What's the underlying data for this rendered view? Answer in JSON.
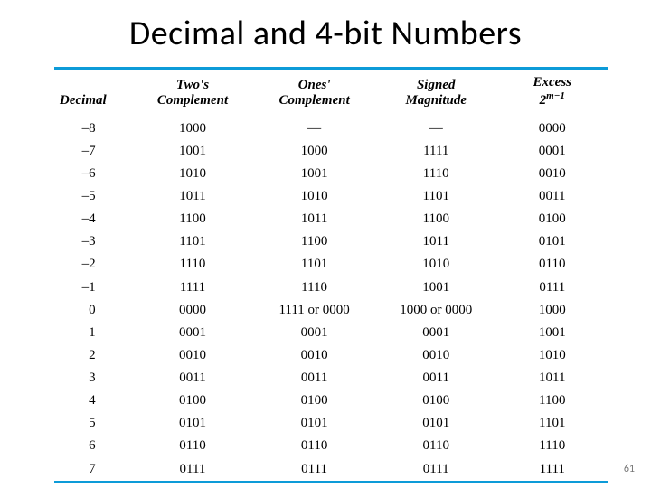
{
  "title": "Decimal and 4-bit Numbers",
  "page_number": "61",
  "table": {
    "type": "table",
    "rule_color": "#0d9bd8",
    "header_font_style": "bold italic",
    "body_font_family": "Times New Roman",
    "columns": {
      "decimal": "Decimal",
      "twos_l1": "Two's",
      "twos_l2": "Complement",
      "ones_l1": "Ones'",
      "ones_l2": "Complement",
      "signed_l1": "Signed",
      "signed_l2": "Magnitude",
      "excess_l1": "Excess",
      "excess_l2_pre": "2",
      "excess_l2_sup": "m−1"
    },
    "rows": [
      {
        "dec": "–8",
        "twos": "1000",
        "ones": "—",
        "signed": "—",
        "excess": "0000"
      },
      {
        "dec": "–7",
        "twos": "1001",
        "ones": "1000",
        "signed": "1111",
        "excess": "0001"
      },
      {
        "dec": "–6",
        "twos": "1010",
        "ones": "1001",
        "signed": "1110",
        "excess": "0010"
      },
      {
        "dec": "–5",
        "twos": "1011",
        "ones": "1010",
        "signed": "1101",
        "excess": "0011"
      },
      {
        "dec": "–4",
        "twos": "1100",
        "ones": "1011",
        "signed": "1100",
        "excess": "0100"
      },
      {
        "dec": "–3",
        "twos": "1101",
        "ones": "1100",
        "signed": "1011",
        "excess": "0101"
      },
      {
        "dec": "–2",
        "twos": "1110",
        "ones": "1101",
        "signed": "1010",
        "excess": "0110"
      },
      {
        "dec": "–1",
        "twos": "1111",
        "ones": "1110",
        "signed": "1001",
        "excess": "0111"
      },
      {
        "dec": "0",
        "twos": "0000",
        "ones": "1111 or 0000",
        "signed": "1000 or 0000",
        "excess": "1000"
      },
      {
        "dec": "1",
        "twos": "0001",
        "ones": "0001",
        "signed": "0001",
        "excess": "1001"
      },
      {
        "dec": "2",
        "twos": "0010",
        "ones": "0010",
        "signed": "0010",
        "excess": "1010"
      },
      {
        "dec": "3",
        "twos": "0011",
        "ones": "0011",
        "signed": "0011",
        "excess": "1011"
      },
      {
        "dec": "4",
        "twos": "0100",
        "ones": "0100",
        "signed": "0100",
        "excess": "1100"
      },
      {
        "dec": "5",
        "twos": "0101",
        "ones": "0101",
        "signed": "0101",
        "excess": "1101"
      },
      {
        "dec": "6",
        "twos": "0110",
        "ones": "0110",
        "signed": "0110",
        "excess": "1110"
      },
      {
        "dec": "7",
        "twos": "0111",
        "ones": "0111",
        "signed": "0111",
        "excess": "1111"
      }
    ]
  }
}
